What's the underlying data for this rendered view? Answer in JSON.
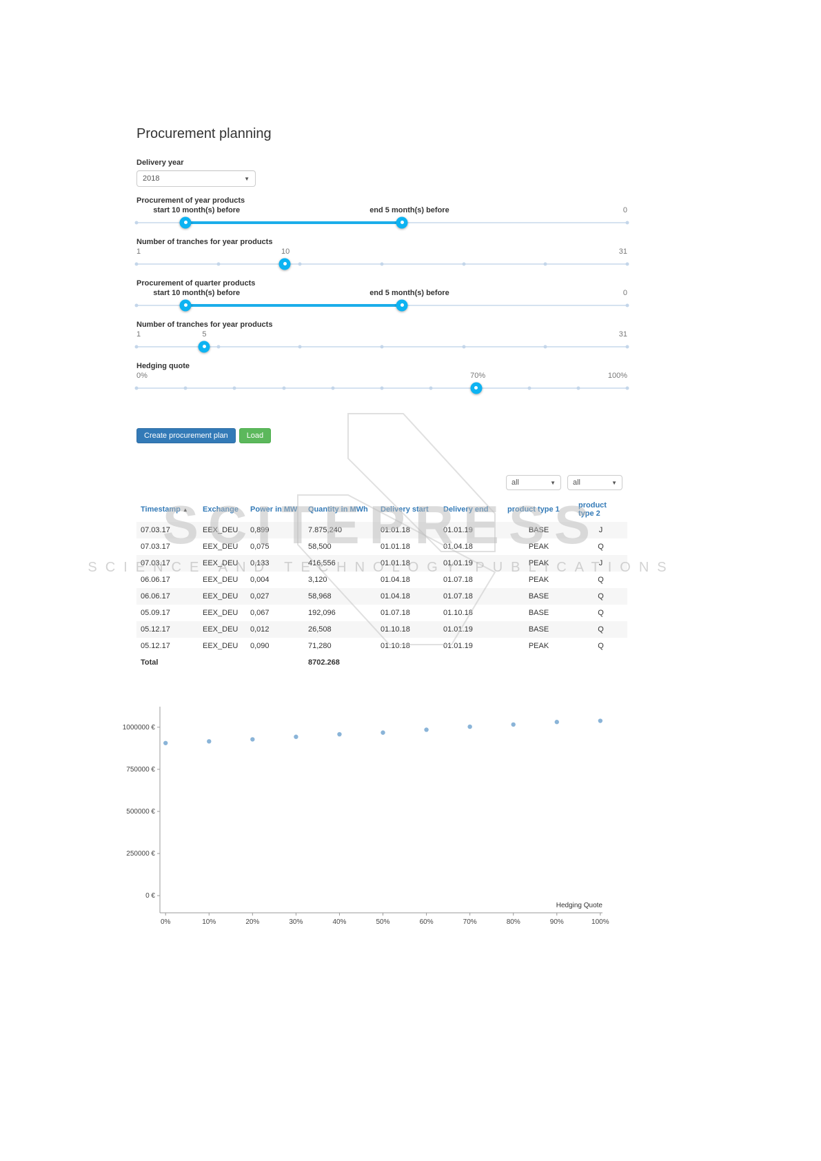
{
  "page": {
    "title": "Procurement planning"
  },
  "delivery_year": {
    "label": "Delivery year",
    "value": "2018"
  },
  "sliders": {
    "year_products": {
      "label": "Procurement of year products",
      "start_text": "start 10 month(s) before",
      "end_text": "end 5 month(s) before",
      "right_label": "0",
      "start_value": 10,
      "end_value": 5,
      "handles_pct": [
        10,
        54.1
      ],
      "start_label_pct": 3.4,
      "mid_label_pct": 47.5,
      "ticks": 2
    },
    "year_tranches": {
      "label": "Number of tranches for year products",
      "min_label": "1",
      "value_label": "10",
      "max_label": "31",
      "min": 1,
      "max": 31,
      "value": 10,
      "handle_pct": 30.2,
      "mid_label_pct": 29.5,
      "ticks": 7
    },
    "quarter_products": {
      "label": "Procurement of quarter products",
      "start_text": "start 10 month(s) before",
      "end_text": "end 5 month(s) before",
      "right_label": "0",
      "start_value": 10,
      "end_value": 5,
      "handles_pct": [
        10,
        54.1
      ],
      "start_label_pct": 3.4,
      "mid_label_pct": 47.5,
      "ticks": 2
    },
    "quarter_tranches": {
      "label": "Number of tranches for year products",
      "min_label": "1",
      "value_label": "5",
      "max_label": "31",
      "min": 1,
      "max": 31,
      "value": 5,
      "handle_pct": 13.8,
      "mid_label_pct": 13.4,
      "ticks": 7
    },
    "hedging_quote": {
      "label": "Hedging quote",
      "min_label": "0%",
      "value_label": "70%",
      "max_label": "100%",
      "min": 0,
      "max": 100,
      "value": 70,
      "handle_pct": 69.2,
      "mid_label_pct": 68,
      "ticks": 11
    }
  },
  "buttons": {
    "create": "Create procurement plan",
    "load": "Load"
  },
  "filters": {
    "product_type_1": "all",
    "product_type_2": "all"
  },
  "table": {
    "columns": [
      "Timestamp",
      "Exchange",
      "Power in MW",
      "Quantity in MWh",
      "Delivery start",
      "Delivery end",
      "product type 1",
      "product type 2"
    ],
    "sort_column": "Timestamp",
    "sort_icon": "▲",
    "rows": [
      [
        "07.03.17",
        "EEX_DEU",
        "0,899",
        "7.875,240",
        "01.01.18",
        "01.01.19",
        "BASE",
        "J"
      ],
      [
        "07.03.17",
        "EEX_DEU",
        "0,075",
        "58,500",
        "01.01.18",
        "01.04.18",
        "PEAK",
        "Q"
      ],
      [
        "07.03.17",
        "EEX_DEU",
        "0,133",
        "416,556",
        "01.01.18",
        "01.01.19",
        "PEAK",
        "J"
      ],
      [
        "06.06.17",
        "EEX_DEU",
        "0,004",
        "3,120",
        "01.04.18",
        "01.07.18",
        "PEAK",
        "Q"
      ],
      [
        "06.06.17",
        "EEX_DEU",
        "0,027",
        "58,968",
        "01.04.18",
        "01.07.18",
        "BASE",
        "Q"
      ],
      [
        "05.09.17",
        "EEX_DEU",
        "0,067",
        "192,096",
        "01.07.18",
        "01.10.18",
        "BASE",
        "Q"
      ],
      [
        "05.12.17",
        "EEX_DEU",
        "0,012",
        "26,508",
        "01.10.18",
        "01.01.19",
        "BASE",
        "Q"
      ],
      [
        "05.12.17",
        "EEX_DEU",
        "0,090",
        "71,280",
        "01.10.18",
        "01.01.19",
        "PEAK",
        "Q"
      ]
    ],
    "total_label": "Total",
    "total_quantity": "8702.268"
  },
  "chart_data": {
    "type": "scatter",
    "title": "",
    "xlabel": "Hedging Quote",
    "ylabel": "",
    "x": [
      0,
      10,
      20,
      30,
      40,
      50,
      60,
      70,
      80,
      90,
      100
    ],
    "y": [
      906000,
      916000,
      928000,
      943000,
      958000,
      968000,
      985000,
      1003000,
      1016000,
      1031000,
      1038000
    ],
    "x_tick_labels": [
      "0%",
      "10%",
      "20%",
      "30%",
      "40%",
      "50%",
      "60%",
      "70%",
      "80%",
      "90%",
      "100%"
    ],
    "y_ticks": [
      {
        "value": 0,
        "label": "0 €"
      },
      {
        "value": 250000,
        "label": "250000 €"
      },
      {
        "value": 500000,
        "label": "500000 €"
      },
      {
        "value": 750000,
        "label": "750000 €"
      },
      {
        "value": 1000000,
        "label": "1000000 €"
      }
    ],
    "xlim": [
      -1.3,
      100.5
    ],
    "ylim": [
      -102000,
      1122000
    ],
    "grid": false,
    "legend": false,
    "point_color": "#8ab4d8"
  },
  "watermark": {
    "line1": "SCITEPRESS",
    "line2": "SCIENCE AND TECHNOLOGY PUBLICATIONS"
  },
  "colors": {
    "slider_accent": "#1badea",
    "slider_handle": "#0db3f2",
    "button_primary": "#337ab7",
    "button_success": "#5cb85c",
    "table_header_text": "#337ab7",
    "chart_point": "#8ab4d8"
  }
}
